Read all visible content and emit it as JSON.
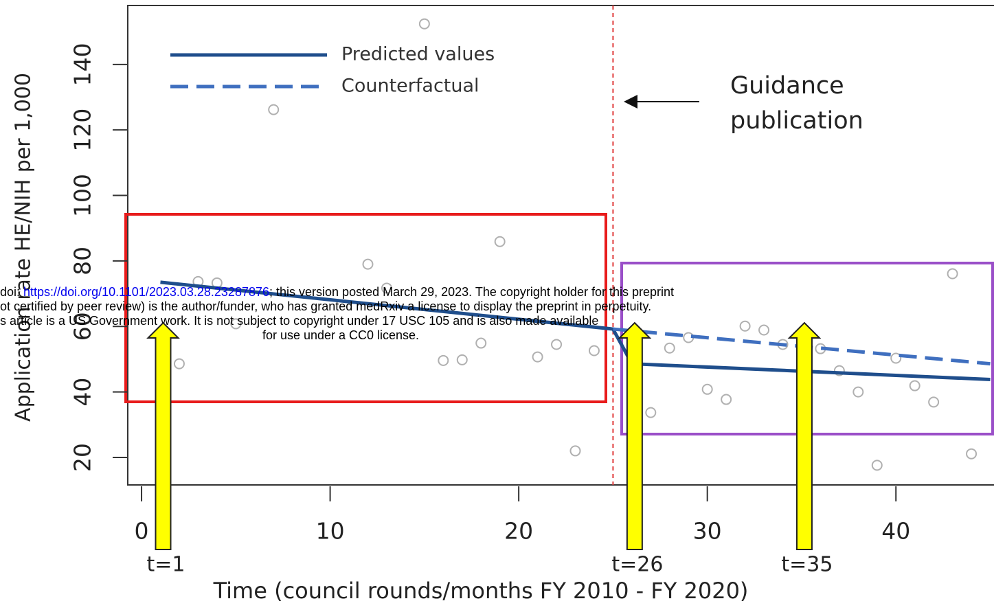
{
  "chart_data": {
    "type": "line",
    "xlabel": "Time (council rounds/months FY 2010 - FY 2020)",
    "ylabel": "Application rate HE/NIH per 1,000",
    "xlim": [
      -0.73,
      45.2
    ],
    "ylim": [
      11.6,
      158
    ],
    "xticks": [
      0,
      10,
      20,
      30,
      40
    ],
    "yticks": [
      20,
      40,
      60,
      80,
      100,
      120,
      140
    ],
    "points": {
      "color": "#b0b0b0",
      "x": [
        2,
        3,
        4,
        5,
        7,
        12,
        13,
        15,
        16,
        17,
        18,
        19,
        21,
        22,
        23,
        24,
        27,
        28,
        29,
        30,
        31,
        32,
        33,
        34,
        35,
        36,
        37,
        38,
        39,
        40,
        41,
        42,
        43,
        44
      ],
      "y": [
        48.6,
        73.7,
        73.3,
        60.8,
        126.2,
        79,
        71.7,
        152.4,
        49.6,
        49.8,
        54.9,
        85.9,
        50.7,
        54.5,
        22,
        52.6,
        33.7,
        53.4,
        56.6,
        40.8,
        37.7,
        60.1,
        58.9,
        54.5,
        58,
        53.2,
        46.5,
        40,
        17.6,
        50.3,
        41.9,
        36.9,
        76.1,
        21.1
      ]
    },
    "series": [
      {
        "name": "Predicted values",
        "color": "#1f4e8c",
        "dashed": false,
        "x": [
          1,
          25,
          26,
          45
        ],
        "values": [
          73.5,
          59.2,
          48.6,
          43.8
        ]
      },
      {
        "name": "Counterfactual",
        "color": "#3f6fbf",
        "dashed": true,
        "x": [
          25,
          45
        ],
        "values": [
          59.2,
          48.6
        ]
      }
    ],
    "vline": {
      "x": 25,
      "color": "#e03a3a"
    },
    "annotation": [
      "Guidance",
      "publication"
    ],
    "markers": [
      {
        "x": 1,
        "label": "t=1"
      },
      {
        "x": 26,
        "label": "t=26"
      },
      {
        "x": 35,
        "label": "t=35"
      }
    ]
  },
  "watermark": {
    "prefix": "doi: ",
    "link": "https://doi.org/10.1101/2023.03.28.23287876",
    "suffix": "; this version posted March 29, 2023. The copyright holder for this preprint",
    "line2": "ot certified by peer review) is the author/funder, who has granted medRxiv a license to display the preprint in perpetuity.",
    "line3": "s article is a US Government work. It is not subject to copyright under 17 USC 105 and is also made available",
    "line4": "for use under a CC0 license."
  }
}
